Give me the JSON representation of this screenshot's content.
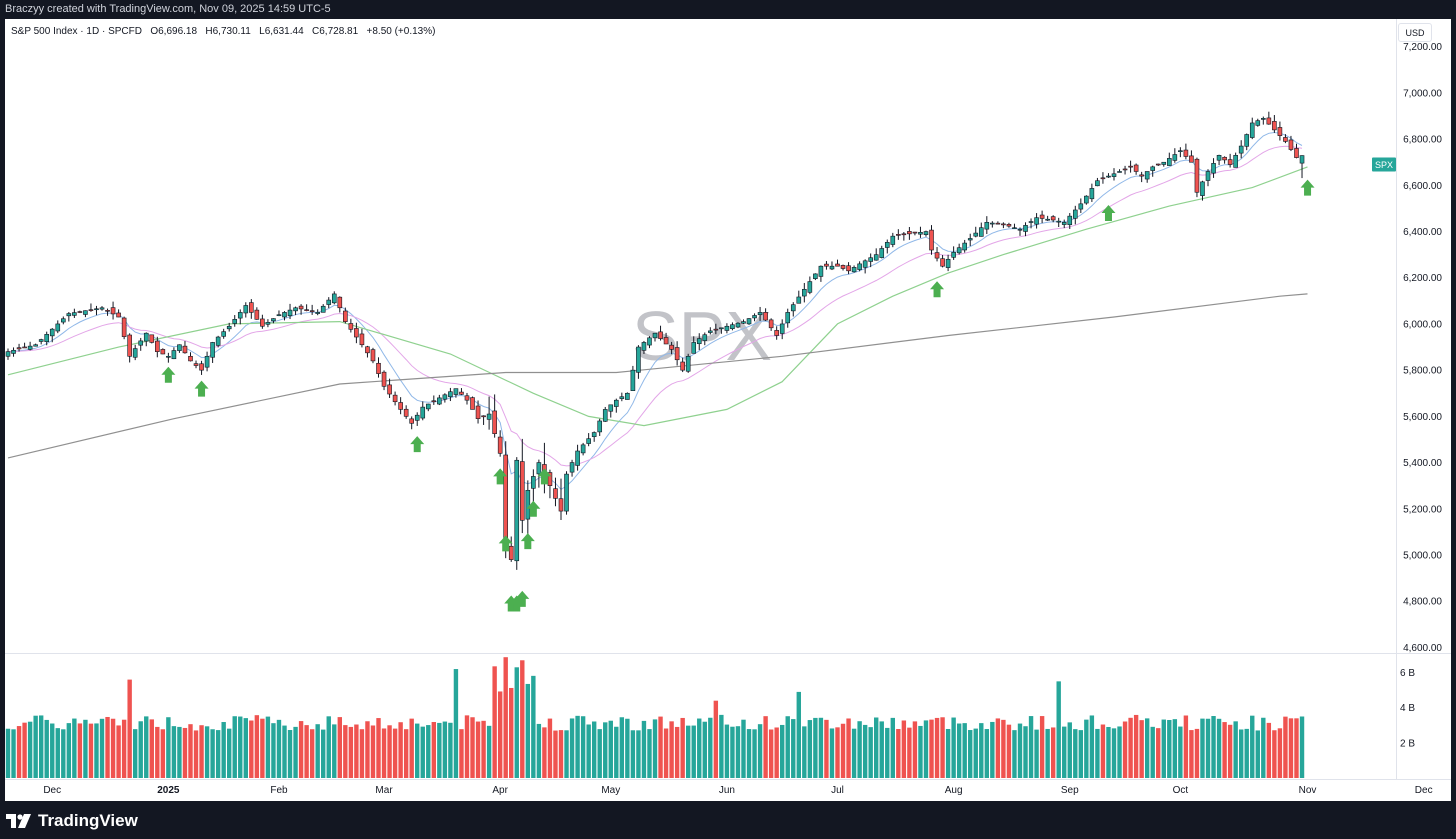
{
  "header": {
    "attribution": "Braczyy created with TradingView.com, Nov 09, 2025 14:59 UTC-5"
  },
  "legend": {
    "symbol": "S&P 500 Index · 1D · SPCFD",
    "open_label": "O",
    "open": "6,696.18",
    "high_label": "H",
    "high": "6,730.11",
    "low_label": "L",
    "low": "6,631.44",
    "close_label": "C",
    "close": "6,728.81",
    "change": "+8.50 (+0.13%)"
  },
  "watermark": "SPX",
  "currency": "USD",
  "price_tag": "SPX",
  "footer": {
    "brand": "TradingView"
  },
  "colors": {
    "up": "#26a69a",
    "down": "#ef5350",
    "ema_fast": "#90b8e8",
    "ema_mid": "#e3a6e8",
    "sma50": "#8fd18f",
    "sma200": "#909090",
    "marker": "#4caf50"
  },
  "chart_data": {
    "type": "candlestick",
    "ylim": [
      4580,
      7320
    ],
    "y_ticks": [
      "7,200.00",
      "7,000.00",
      "6,800.00",
      "6,600.00",
      "6,400.00",
      "6,200.00",
      "6,000.00",
      "5,800.00",
      "5,600.00",
      "5,400.00",
      "5,200.00",
      "5,000.00",
      "4,800.00",
      "4,600.00"
    ],
    "y_tick_values": [
      7200,
      7000,
      6800,
      6600,
      6400,
      6200,
      6000,
      5800,
      5600,
      5400,
      5200,
      5000,
      4800,
      4600
    ],
    "volume_ticks": [
      "6 B",
      "4 B",
      "2 B"
    ],
    "volume_tick_values": [
      6,
      4,
      2
    ],
    "volume_max": 7,
    "x_labels": [
      {
        "label": "Dec",
        "bar": 8
      },
      {
        "label": "2025",
        "bar": 29
      },
      {
        "label": "Feb",
        "bar": 49
      },
      {
        "label": "Mar",
        "bar": 68
      },
      {
        "label": "Apr",
        "bar": 89
      },
      {
        "label": "May",
        "bar": 109
      },
      {
        "label": "Jun",
        "bar": 130
      },
      {
        "label": "Jul",
        "bar": 150
      },
      {
        "label": "Aug",
        "bar": 171
      },
      {
        "label": "Sep",
        "bar": 192
      },
      {
        "label": "Oct",
        "bar": 212
      },
      {
        "label": "Nov",
        "bar": 235
      },
      {
        "label": "Dec",
        "bar": 256
      }
    ],
    "bar_count_visible": 263,
    "anchors": [
      [
        0,
        5880
      ],
      [
        5,
        5910
      ],
      [
        11,
        6045
      ],
      [
        17,
        6070
      ],
      [
        20,
        6030
      ],
      [
        22,
        5860
      ],
      [
        25,
        5960
      ],
      [
        27,
        5880
      ],
      [
        29,
        5860
      ],
      [
        31,
        5910
      ],
      [
        33,
        5840
      ],
      [
        35,
        5800
      ],
      [
        37,
        5920
      ],
      [
        40,
        5990
      ],
      [
        43,
        6080
      ],
      [
        46,
        5990
      ],
      [
        49,
        6040
      ],
      [
        52,
        6070
      ],
      [
        56,
        6050
      ],
      [
        59,
        6130
      ],
      [
        61,
        6010
      ],
      [
        64,
        5910
      ],
      [
        66,
        5840
      ],
      [
        68,
        5730
      ],
      [
        71,
        5630
      ],
      [
        73,
        5570
      ],
      [
        75,
        5640
      ],
      [
        78,
        5680
      ],
      [
        81,
        5720
      ],
      [
        83,
        5670
      ],
      [
        85,
        5590
      ],
      [
        87,
        5610
      ],
      [
        89,
        5440
      ],
      [
        90,
        5050
      ],
      [
        91,
        4980
      ],
      [
        92,
        5410
      ],
      [
        93,
        5150
      ],
      [
        94,
        5280
      ],
      [
        96,
        5400
      ],
      [
        98,
        5300
      ],
      [
        100,
        5190
      ],
      [
        101,
        5350
      ],
      [
        103,
        5450
      ],
      [
        106,
        5530
      ],
      [
        108,
        5630
      ],
      [
        110,
        5670
      ],
      [
        112,
        5700
      ],
      [
        114,
        5900
      ],
      [
        117,
        5960
      ],
      [
        120,
        5890
      ],
      [
        122,
        5800
      ],
      [
        124,
        5920
      ],
      [
        127,
        5970
      ],
      [
        130,
        5990
      ],
      [
        133,
        6010
      ],
      [
        136,
        6050
      ],
      [
        139,
        5950
      ],
      [
        141,
        6050
      ],
      [
        144,
        6150
      ],
      [
        147,
        6250
      ],
      [
        150,
        6250
      ],
      [
        152,
        6230
      ],
      [
        154,
        6260
      ],
      [
        157,
        6300
      ],
      [
        160,
        6380
      ],
      [
        163,
        6390
      ],
      [
        166,
        6400
      ],
      [
        167,
        6320
      ],
      [
        169,
        6250
      ],
      [
        171,
        6310
      ],
      [
        174,
        6370
      ],
      [
        177,
        6440
      ],
      [
        180,
        6430
      ],
      [
        183,
        6410
      ],
      [
        186,
        6460
      ],
      [
        189,
        6450
      ],
      [
        191,
        6440
      ],
      [
        194,
        6520
      ],
      [
        197,
        6620
      ],
      [
        200,
        6650
      ],
      [
        203,
        6680
      ],
      [
        205,
        6640
      ],
      [
        207,
        6680
      ],
      [
        209,
        6700
      ],
      [
        212,
        6750
      ],
      [
        214,
        6700
      ],
      [
        215,
        6570
      ],
      [
        217,
        6660
      ],
      [
        219,
        6730
      ],
      [
        221,
        6690
      ],
      [
        223,
        6770
      ],
      [
        225,
        6870
      ],
      [
        227,
        6890
      ],
      [
        229,
        6840
      ],
      [
        231,
        6790
      ],
      [
        233,
        6720
      ],
      [
        234,
        6729
      ]
    ],
    "sma200_points": [
      [
        0,
        5420
      ],
      [
        30,
        5590
      ],
      [
        60,
        5740
      ],
      [
        90,
        5790
      ],
      [
        110,
        5790
      ],
      [
        140,
        5860
      ],
      [
        170,
        5950
      ],
      [
        200,
        6030
      ],
      [
        230,
        6120
      ],
      [
        235,
        6130
      ]
    ],
    "sma50_points": [
      [
        0,
        5780
      ],
      [
        20,
        5900
      ],
      [
        40,
        6000
      ],
      [
        60,
        6010
      ],
      [
        80,
        5870
      ],
      [
        95,
        5700
      ],
      [
        105,
        5600
      ],
      [
        115,
        5560
      ],
      [
        130,
        5630
      ],
      [
        140,
        5750
      ],
      [
        150,
        6000
      ],
      [
        160,
        6120
      ],
      [
        170,
        6220
      ],
      [
        180,
        6300
      ],
      [
        195,
        6410
      ],
      [
        210,
        6510
      ],
      [
        225,
        6590
      ],
      [
        235,
        6680
      ]
    ],
    "markers": [
      {
        "bar": 29,
        "price": 5780
      },
      {
        "bar": 35,
        "price": 5720
      },
      {
        "bar": 74,
        "price": 5480
      },
      {
        "bar": 89,
        "price": 5340
      },
      {
        "bar": 90,
        "price": 5050
      },
      {
        "bar": 91,
        "price": 4790
      },
      {
        "bar": 92,
        "price": 4790
      },
      {
        "bar": 93,
        "price": 4810
      },
      {
        "bar": 94,
        "price": 5060
      },
      {
        "bar": 95,
        "price": 5200
      },
      {
        "bar": 97,
        "price": 5340
      },
      {
        "bar": 168,
        "price": 6150
      },
      {
        "bar": 199,
        "price": 6480
      },
      {
        "bar": 235,
        "price": 6590
      }
    ]
  }
}
